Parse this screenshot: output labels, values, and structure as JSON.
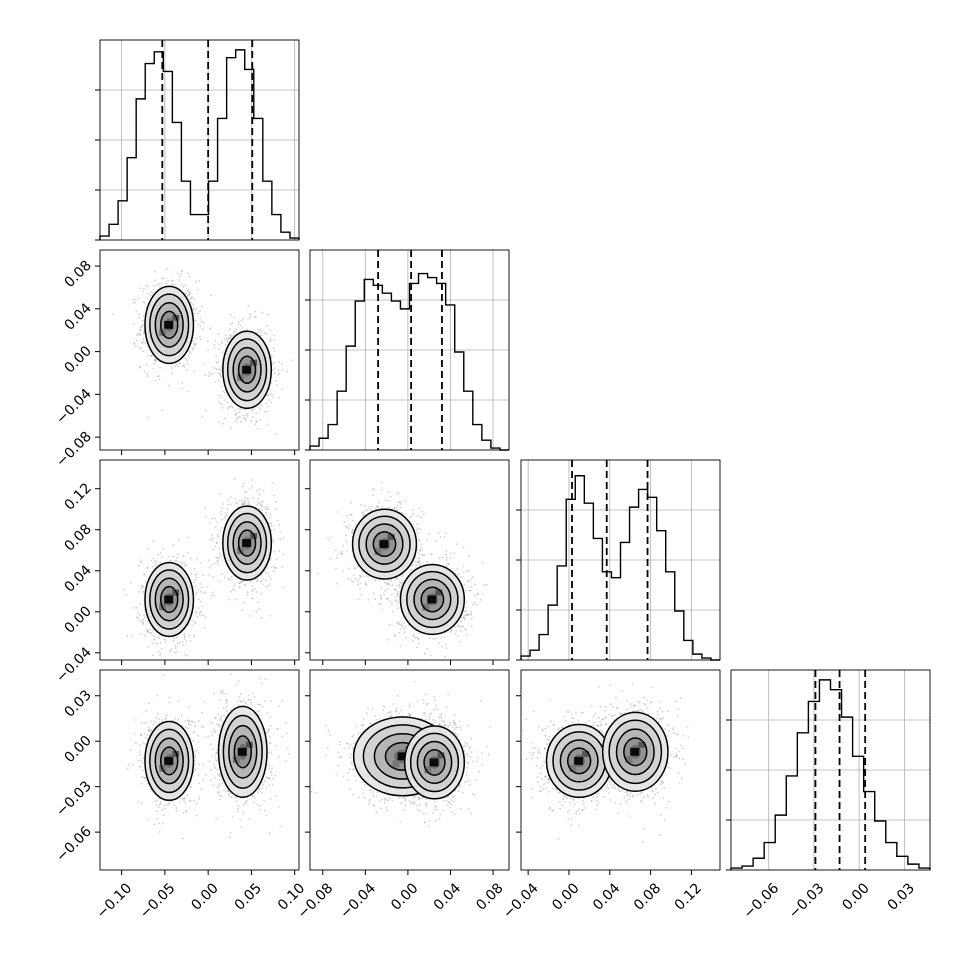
{
  "chart_data": {
    "type": "corner",
    "n_params": 4,
    "colors": {
      "ink": "#000000",
      "grid": "#b0b0b0",
      "points": "#9a9a9a"
    },
    "grid": true,
    "axes_ranges": [
      [
        -0.125,
        0.105
      ],
      [
        -0.092,
        0.095
      ],
      [
        -0.047,
        0.148
      ],
      [
        -0.085,
        0.047
      ]
    ],
    "ticks": [
      {
        "values": [
          -0.1,
          -0.05,
          0.0,
          0.05,
          0.1
        ],
        "labels": [
          "−0.10",
          "−0.05",
          "0.00",
          "0.05",
          "0.10"
        ]
      },
      {
        "values": [
          -0.08,
          -0.04,
          0.0,
          0.04,
          0.08
        ],
        "labels": [
          "−0.08",
          "−0.04",
          "0.00",
          "0.04",
          "0.08"
        ]
      },
      {
        "values": [
          -0.04,
          0.0,
          0.04,
          0.08,
          0.12
        ],
        "labels": [
          "−0.04",
          "0.00",
          "0.04",
          "0.08",
          "0.12"
        ]
      },
      {
        "values": [
          -0.06,
          -0.03,
          0.0,
          0.03
        ],
        "labels": [
          "−0.06",
          "−0.03",
          "0.00",
          "0.03"
        ]
      }
    ],
    "quantiles": [
      [
        -0.053,
        0.0,
        0.051
      ],
      [
        -0.028,
        0.003,
        0.032
      ],
      [
        0.003,
        0.037,
        0.077
      ],
      [
        -0.029,
        -0.013,
        0.004
      ]
    ],
    "histograms": [
      {
        "param": 0,
        "counts": [
          0.02,
          0.08,
          0.2,
          0.42,
          0.72,
          0.9,
          0.96,
          0.86,
          0.6,
          0.3,
          0.13,
          0.13,
          0.3,
          0.62,
          0.93,
          0.97,
          0.87,
          0.62,
          0.3,
          0.13,
          0.04,
          0.01
        ]
      },
      {
        "param": 1,
        "counts": [
          0.02,
          0.06,
          0.13,
          0.3,
          0.53,
          0.76,
          0.87,
          0.84,
          0.8,
          0.76,
          0.72,
          0.85,
          0.9,
          0.88,
          0.85,
          0.74,
          0.5,
          0.3,
          0.13,
          0.05,
          0.01,
          0.0
        ]
      },
      {
        "param": 2,
        "counts": [
          0.02,
          0.05,
          0.13,
          0.28,
          0.48,
          0.82,
          0.94,
          0.8,
          0.62,
          0.45,
          0.42,
          0.6,
          0.78,
          0.87,
          0.83,
          0.66,
          0.45,
          0.25,
          0.1,
          0.03,
          0.01,
          0.0
        ]
      },
      {
        "param": 3,
        "counts": [
          0.01,
          0.02,
          0.06,
          0.14,
          0.28,
          0.48,
          0.7,
          0.86,
          0.97,
          0.92,
          0.78,
          0.58,
          0.4,
          0.25,
          0.14,
          0.07,
          0.03,
          0.01
        ]
      }
    ],
    "scatter_panels": [
      {
        "row": 1,
        "col": 0,
        "modes": [
          {
            "cx": -0.045,
            "cy": 0.025,
            "sx": 0.014,
            "sy": 0.018
          },
          {
            "cx": 0.045,
            "cy": -0.017,
            "sx": 0.014,
            "sy": 0.018
          }
        ]
      },
      {
        "row": 2,
        "col": 0,
        "modes": [
          {
            "cx": -0.045,
            "cy": 0.012,
            "sx": 0.014,
            "sy": 0.018
          },
          {
            "cx": 0.045,
            "cy": 0.067,
            "sx": 0.014,
            "sy": 0.018
          }
        ]
      },
      {
        "row": 2,
        "col": 1,
        "modes": [
          {
            "cx": -0.022,
            "cy": 0.066,
            "sx": 0.015,
            "sy": 0.017
          },
          {
            "cx": 0.023,
            "cy": 0.012,
            "sx": 0.015,
            "sy": 0.017
          }
        ]
      },
      {
        "row": 3,
        "col": 0,
        "modes": [
          {
            "cx": -0.045,
            "cy": -0.013,
            "sx": 0.014,
            "sy": 0.013
          },
          {
            "cx": 0.04,
            "cy": -0.007,
            "sx": 0.014,
            "sy": 0.015
          }
        ]
      },
      {
        "row": 3,
        "col": 1,
        "modes": [
          {
            "cx": -0.005,
            "cy": -0.01,
            "sx": 0.023,
            "sy": 0.013
          },
          {
            "cx": 0.025,
            "cy": -0.014,
            "sx": 0.014,
            "sy": 0.012
          }
        ]
      },
      {
        "row": 3,
        "col": 2,
        "modes": [
          {
            "cx": 0.01,
            "cy": -0.013,
            "sx": 0.016,
            "sy": 0.012
          },
          {
            "cx": 0.065,
            "cy": -0.007,
            "sx": 0.016,
            "sy": 0.013
          }
        ]
      }
    ]
  }
}
